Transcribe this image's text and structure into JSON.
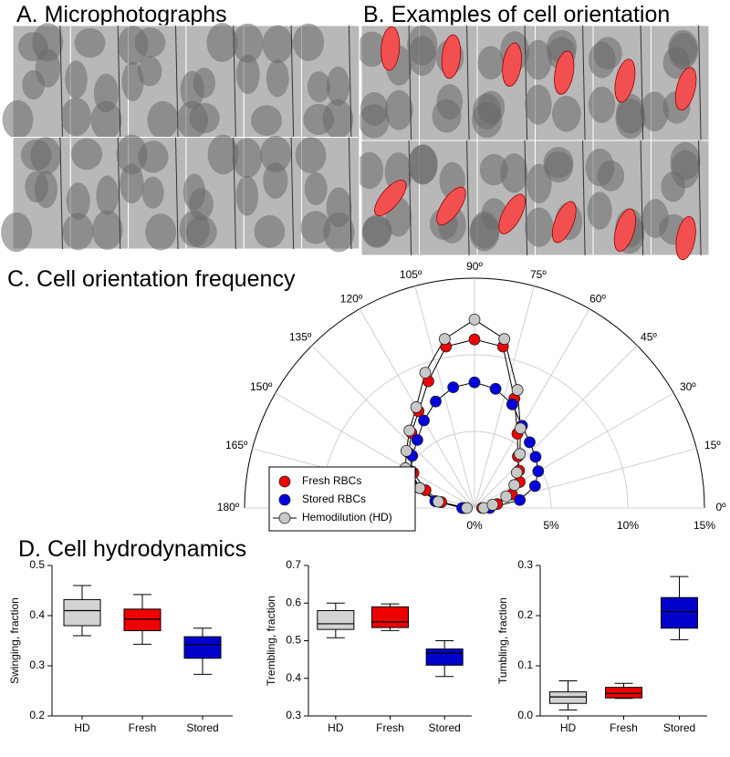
{
  "figure": {
    "panel_a": "A. Microphotographs",
    "panel_b": "B. Examples of cell orientation",
    "panel_d": "D. Cell hydrodynamics"
  },
  "chart_data": [
    {
      "type": "polar",
      "title": "C. Cell orientation frequency",
      "theta": [
        0,
        10,
        20,
        30,
        40,
        50,
        60,
        70,
        80,
        90,
        100,
        110,
        120,
        130,
        140,
        150,
        160,
        170,
        180
      ],
      "thetaticks": [
        {
          "value": 0,
          "label": "0º"
        },
        {
          "value": 15,
          "label": "15º"
        },
        {
          "value": 30,
          "label": "30º"
        },
        {
          "value": 45,
          "label": "45º"
        },
        {
          "value": 60,
          "label": "60º"
        },
        {
          "value": 75,
          "label": "75º"
        },
        {
          "value": 90,
          "label": "90º"
        },
        {
          "value": 105,
          "label": "105º"
        },
        {
          "value": 120,
          "label": "120º"
        },
        {
          "value": 135,
          "label": "135º"
        },
        {
          "value": 150,
          "label": "150º"
        },
        {
          "value": 165,
          "label": "165º"
        },
        {
          "value": 180,
          "label": "180º"
        }
      ],
      "rlim": [
        0,
        15
      ],
      "rticks": [
        {
          "value": 0,
          "label": "0%"
        },
        {
          "value": 5,
          "label": "5%"
        },
        {
          "value": 10,
          "label": "10%"
        },
        {
          "value": 15,
          "label": "15%"
        }
      ],
      "line_color": "#000000",
      "legend": "lower left",
      "series": [
        {
          "name": "Fresh RBCs",
          "color": "#ee0000",
          "values": [
            0.5,
            1.5,
            2.6,
            3.4,
            3.8,
            4.4,
            5.6,
            7.6,
            10.7,
            11.0,
            10.7,
            8.8,
            7.3,
            6.4,
            5.6,
            4.6,
            3.4,
            2.2,
            0.6
          ]
        },
        {
          "name": "Stored RBCs",
          "color": "#0000dd",
          "values": [
            1.0,
            3.0,
            4.2,
            4.8,
            5.2,
            5.6,
            6.2,
            7.2,
            7.9,
            8.2,
            8.0,
            7.4,
            6.6,
            5.8,
            5.3,
            4.8,
            3.8,
            2.6,
            0.8
          ]
        },
        {
          "name": "Hemodilution (HD)",
          "color": "#c8c8c8",
          "values": [
            0.6,
            1.2,
            2.2,
            3.0,
            3.6,
            4.6,
            6.0,
            8.2,
            11.2,
            12.3,
            11.2,
            9.4,
            7.6,
            6.6,
            5.8,
            5.2,
            3.8,
            2.4,
            0.5
          ]
        }
      ]
    },
    {
      "type": "box",
      "ylabel": "Swinging, fraction",
      "categories": [
        "HD",
        "Fresh",
        "Stored"
      ],
      "colors": [
        "#d3d3d3",
        "#ee0000",
        "#0000cc"
      ],
      "values": [
        [
          0.36,
          0.38,
          0.41,
          0.432,
          0.46
        ],
        [
          0.343,
          0.37,
          0.393,
          0.413,
          0.442
        ],
        [
          0.283,
          0.315,
          0.342,
          0.358,
          0.375
        ]
      ],
      "ylim": [
        0.2,
        0.5
      ],
      "yticks": [
        0.2,
        0.3,
        0.4,
        0.5
      ]
    },
    {
      "type": "box",
      "ylabel": "Trembling, fraction",
      "categories": [
        "HD",
        "Fresh",
        "Stored"
      ],
      "colors": [
        "#d3d3d3",
        "#ee0000",
        "#0000cc"
      ],
      "values": [
        [
          0.508,
          0.53,
          0.545,
          0.58,
          0.6
        ],
        [
          0.527,
          0.535,
          0.55,
          0.59,
          0.598
        ],
        [
          0.405,
          0.435,
          0.467,
          0.478,
          0.5
        ]
      ],
      "ylim": [
        0.3,
        0.7
      ],
      "yticks": [
        0.3,
        0.4,
        0.5,
        0.6,
        0.7
      ]
    },
    {
      "type": "box",
      "ylabel": "Tumbling, fraction",
      "categories": [
        "HD",
        "Fresh",
        "Stored"
      ],
      "colors": [
        "#d3d3d3",
        "#ee0000",
        "#0000cc"
      ],
      "values": [
        [
          0.012,
          0.025,
          0.038,
          0.048,
          0.07
        ],
        [
          0.035,
          0.036,
          0.045,
          0.057,
          0.065
        ],
        [
          0.152,
          0.175,
          0.208,
          0.236,
          0.278
        ]
      ],
      "ylim": [
        0,
        0.3
      ],
      "yticks": [
        {
          "value": 0,
          "label": "0.0"
        },
        0.1,
        0.2,
        0.3
      ]
    }
  ]
}
